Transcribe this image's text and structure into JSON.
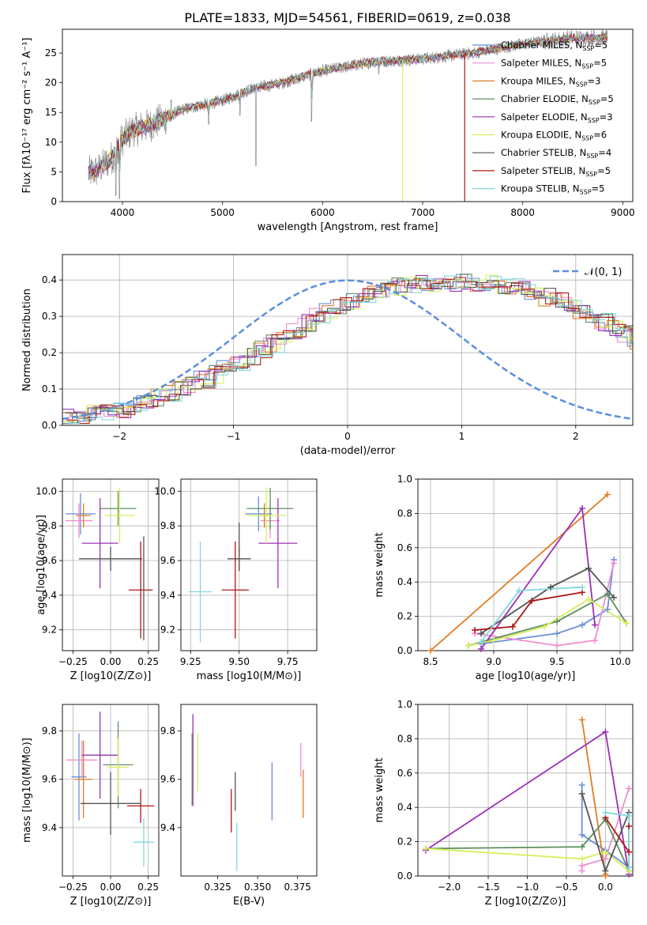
{
  "figure_title": "PLATE=1833, MJD=54561, FIBERID=0619, z=0.038",
  "colors": {
    "Chabrier MILES": "#6a8fd8",
    "Salpeter MILES": "#ee8ecd",
    "Kroupa MILES": "#e07c24",
    "Chabrier ELODIE": "#5f8f5f",
    "Salpeter ELODIE": "#9b30b5",
    "Kroupa ELODIE": "#d7ef5a",
    "Chabrier STELIB": "#555555",
    "Salpeter STELIB": "#b01515",
    "Kroupa STELIB": "#82d8dc",
    "data": "#808080",
    "normal_curve": "#5b8ee0"
  },
  "chart_data": [
    {
      "id": "spectrum",
      "type": "line",
      "title": "PLATE=1833, MJD=54561, FIBERID=0619, z=0.038",
      "xlabel": "wavelength [Angstrom, rest frame]",
      "ylabel": "Flux [fλ10⁻¹⁷ erg cm⁻² s⁻¹ A⁻¹]",
      "xlim": [
        3400,
        9100
      ],
      "ylim": [
        0,
        29
      ],
      "xticks": [
        4000,
        5000,
        6000,
        7000,
        8000,
        9000
      ],
      "yticks": [
        0,
        5,
        10,
        15,
        20,
        25
      ],
      "grid": false,
      "legend_position": "upper-right",
      "continuum": [
        [
          3660,
          4.8
        ],
        [
          3750,
          5.2
        ],
        [
          3900,
          7.5
        ],
        [
          4000,
          10.5
        ],
        [
          4100,
          12.0
        ],
        [
          4300,
          13.0
        ],
        [
          4600,
          15.5
        ],
        [
          5000,
          17.0
        ],
        [
          5300,
          19.0
        ],
        [
          5600,
          20.0
        ],
        [
          6000,
          22.0
        ],
        [
          6500,
          23.5
        ],
        [
          7000,
          24.0
        ],
        [
          7500,
          25.0
        ],
        [
          8000,
          26.5
        ],
        [
          8500,
          27.5
        ],
        [
          8850,
          27.6
        ]
      ],
      "absorption_lines": [
        [
          3934,
          1.0
        ],
        [
          3969,
          0.5
        ],
        [
          4861,
          13.0
        ],
        [
          5175,
          14.5
        ],
        [
          5270,
          18.0
        ],
        [
          5335,
          6.0
        ],
        [
          5891,
          13.5
        ],
        [
          6563,
          21.5
        ]
      ],
      "drop_lines": [
        {
          "series": "Kroupa ELODIE",
          "x": 6800
        },
        {
          "series": "Salpeter STELIB",
          "x": 7420
        }
      ],
      "legend": [
        {
          "label": "Chabrier MILES, N_SSP=5",
          "prefix": "Chabrier MILES, N",
          "sub": "SSP",
          "suffix": "=5"
        },
        {
          "label": "Salpeter MILES, N_SSP=5",
          "prefix": "Salpeter MILES, N",
          "sub": "SSP",
          "suffix": "=5"
        },
        {
          "label": "Kroupa MILES, N_SSP=3",
          "prefix": "Kroupa MILES, N",
          "sub": "SSP",
          "suffix": "=3"
        },
        {
          "label": "Chabrier ELODIE, N_SSP=5",
          "prefix": "Chabrier ELODIE, N",
          "sub": "SSP",
          "suffix": "=5"
        },
        {
          "label": "Salpeter ELODIE, N_SSP=3",
          "prefix": "Salpeter ELODIE, N",
          "sub": "SSP",
          "suffix": "=3"
        },
        {
          "label": "Kroupa ELODIE, N_SSP=6",
          "prefix": "Kroupa ELODIE, N",
          "sub": "SSP",
          "suffix": "=6"
        },
        {
          "label": "Chabrier STELIB, N_SSP=4",
          "prefix": "Chabrier STELIB, N",
          "sub": "SSP",
          "suffix": "=4"
        },
        {
          "label": "Salpeter STELIB, N_SSP=5",
          "prefix": "Salpeter STELIB, N",
          "sub": "SSP",
          "suffix": "=5"
        },
        {
          "label": "Kroupa STELIB, N_SSP=5",
          "prefix": "Kroupa STELIB, N",
          "sub": "SSP",
          "suffix": "=5"
        }
      ]
    },
    {
      "id": "residuals",
      "type": "line",
      "xlabel": "(data-model)/error",
      "ylabel": "Normed distribution",
      "xlim": [
        -2.5,
        2.5
      ],
      "ylim": [
        0,
        0.47
      ],
      "xticks": [
        -2,
        -1,
        0,
        1,
        2
      ],
      "yticks": [
        0.0,
        0.1,
        0.2,
        0.3,
        0.4
      ],
      "grid": true,
      "legend_position": "upper-right",
      "legend_label": "𝒩(0, 1)",
      "bin_width": 0.1,
      "hist_base": [
        0.022,
        0.026,
        0.03,
        0.035,
        0.04,
        0.046,
        0.055,
        0.064,
        0.075,
        0.086,
        0.098,
        0.112,
        0.126,
        0.14,
        0.157,
        0.174,
        0.19,
        0.208,
        0.225,
        0.243,
        0.262,
        0.28,
        0.3,
        0.316,
        0.33,
        0.343,
        0.355,
        0.365,
        0.375,
        0.383,
        0.388,
        0.392,
        0.393,
        0.395,
        0.394,
        0.396,
        0.393,
        0.39,
        0.385,
        0.38,
        0.372,
        0.362,
        0.353,
        0.345,
        0.333,
        0.318,
        0.302,
        0.285,
        0.268,
        0.25,
        0.232,
        0.214,
        0.197,
        0.18,
        0.163,
        0.147,
        0.132,
        0.118,
        0.105,
        0.093,
        0.082,
        0.072,
        0.063,
        0.055,
        0.048,
        0.042,
        0.036,
        0.031,
        0.027,
        0.024
      ],
      "curve": "standard normal"
    },
    {
      "id": "age-vs-Z",
      "type": "scatter",
      "xlabel": "Z [log10(Z/Z⊙)]",
      "ylabel": "age [log10(age/yr)]",
      "xlim": [
        -0.32,
        0.32
      ],
      "ylim": [
        9.08,
        10.07
      ],
      "xticks": [
        -0.25,
        0.0,
        0.25
      ],
      "yticks": [
        9.2,
        9.4,
        9.6,
        9.8,
        10.0
      ],
      "grid": true,
      "points": [
        {
          "series": "Chabrier MILES",
          "x": -0.2,
          "y": 9.87,
          "xerr": 0.1,
          "yerr": 0.12
        },
        {
          "series": "Salpeter MILES",
          "x": -0.21,
          "y": 9.83,
          "xerr": 0.09,
          "yerr": 0.1
        },
        {
          "series": "Kroupa MILES",
          "x": -0.18,
          "y": 9.86,
          "xerr": 0.05,
          "yerr": 0.07
        },
        {
          "series": "Chabrier ELODIE",
          "x": 0.05,
          "y": 9.9,
          "xerr": 0.12,
          "yerr": 0.1
        },
        {
          "series": "Salpeter ELODIE",
          "x": -0.07,
          "y": 9.7,
          "xerr": 0.12,
          "yerr": 0.26
        },
        {
          "series": "Kroupa ELODIE",
          "x": 0.06,
          "y": 9.86,
          "xerr": 0.1,
          "yerr": 0.16
        },
        {
          "series": "Chabrier STELIB",
          "x": 0.0,
          "y": 9.61,
          "xerr": 0.21,
          "yerr": 0.07
        },
        {
          "series": "Salpeter STELIB",
          "x": 0.2,
          "y": 9.43,
          "xerr": 0.08,
          "yerr": 0.28
        },
        {
          "series": "Chabrier STELIB",
          "x": 0.22,
          "y": 9.44,
          "xerr": 0.0,
          "yerr": 0.3
        }
      ]
    },
    {
      "id": "age-vs-mass",
      "type": "scatter",
      "xlabel": "mass [log10(M/M⊙)]",
      "xlim": [
        9.2,
        9.9
      ],
      "ylim": [
        9.08,
        10.07
      ],
      "xticks": [
        9.25,
        9.5,
        9.75
      ],
      "yticks": [
        9.2,
        9.4,
        9.6,
        9.8,
        10.0
      ],
      "grid": true,
      "points": [
        {
          "series": "Chabrier MILES",
          "x": 9.6,
          "y": 9.87,
          "xerr": 0.07,
          "yerr": 0.1
        },
        {
          "series": "Salpeter MILES",
          "x": 9.66,
          "y": 9.83,
          "xerr": 0.05,
          "yerr": 0.1
        },
        {
          "series": "Kroupa MILES",
          "x": 9.63,
          "y": 9.86,
          "xerr": 0.03,
          "yerr": 0.07
        },
        {
          "series": "Chabrier ELODIE",
          "x": 9.66,
          "y": 9.9,
          "xerr": 0.12,
          "yerr": 0.12
        },
        {
          "series": "Salpeter ELODIE",
          "x": 9.7,
          "y": 9.7,
          "xerr": 0.1,
          "yerr": 0.26
        },
        {
          "series": "Kroupa ELODIE",
          "x": 9.64,
          "y": 9.86,
          "xerr": 0.1,
          "yerr": 0.16
        },
        {
          "series": "Chabrier STELIB",
          "x": 9.5,
          "y": 9.61,
          "xerr": 0.06,
          "yerr": 0.07
        },
        {
          "series": "Salpeter STELIB",
          "x": 9.48,
          "y": 9.43,
          "xerr": 0.07,
          "yerr": 0.28
        },
        {
          "series": "Kroupa STELIB",
          "x": 9.3,
          "y": 9.42,
          "xerr": 0.06,
          "yerr": 0.29
        },
        {
          "series": "Chabrier STELIB",
          "x": 9.5,
          "y": 9.68,
          "xerr": 0.0,
          "yerr": 0.14
        }
      ]
    },
    {
      "id": "mass-weight-vs-age",
      "type": "line",
      "xlabel": "age [log10(age/yr)]",
      "ylabel": "mass weight",
      "xlim": [
        8.4,
        10.1
      ],
      "ylim": [
        0,
        1.0
      ],
      "xticks": [
        8.5,
        9.0,
        9.5,
        10.0
      ],
      "yticks": [
        0.0,
        0.2,
        0.4,
        0.6,
        0.8,
        1.0
      ],
      "grid": true,
      "series": [
        {
          "name": "Chabrier MILES",
          "x": [
            8.9,
            9.5,
            9.7,
            9.9,
            9.95
          ],
          "y": [
            0.04,
            0.1,
            0.15,
            0.24,
            0.53
          ]
        },
        {
          "name": "Salpeter MILES",
          "x": [
            8.85,
            9.5,
            9.8,
            9.95
          ],
          "y": [
            0.1,
            0.03,
            0.06,
            0.51
          ]
        },
        {
          "name": "Kroupa MILES",
          "x": [
            8.5,
            9.9
          ],
          "y": [
            0.0,
            0.91
          ]
        },
        {
          "name": "Chabrier ELODIE",
          "x": [
            8.8,
            9.5,
            9.9,
            10.05
          ],
          "y": [
            0.03,
            0.17,
            0.33,
            0.16
          ]
        },
        {
          "name": "Salpeter ELODIE",
          "x": [
            8.9,
            9.7,
            9.8
          ],
          "y": [
            0.01,
            0.83,
            0.15
          ]
        },
        {
          "name": "Kroupa ELODIE",
          "x": [
            8.8,
            9.0,
            9.4,
            9.75,
            10.05
          ],
          "y": [
            0.03,
            0.06,
            0.14,
            0.3,
            0.16
          ]
        },
        {
          "name": "Chabrier STELIB",
          "x": [
            8.9,
            9.45,
            9.75,
            9.95
          ],
          "y": [
            0.1,
            0.37,
            0.48,
            0.31
          ]
        },
        {
          "name": "Salpeter STELIB",
          "x": [
            8.85,
            9.15,
            9.3,
            9.7
          ],
          "y": [
            0.12,
            0.14,
            0.29,
            0.34
          ]
        },
        {
          "name": "Kroupa STELIB",
          "x": [
            8.9,
            9.2,
            9.7
          ],
          "y": [
            0.05,
            0.35,
            0.37
          ]
        }
      ]
    },
    {
      "id": "mass-vs-Z",
      "type": "scatter",
      "xlabel": "Z [log10(Z/Z⊙)]",
      "ylabel": "mass [log10(M/M⊙)]",
      "xlim": [
        -0.32,
        0.32
      ],
      "ylim": [
        9.2,
        9.91
      ],
      "xticks": [
        -0.25,
        0.0,
        0.25
      ],
      "yticks": [
        9.4,
        9.6,
        9.8
      ],
      "grid": true,
      "points": [
        {
          "series": "Chabrier MILES",
          "x": -0.21,
          "y": 9.61,
          "xerr": 0.05,
          "yerr": 0.18
        },
        {
          "series": "Salpeter MILES",
          "x": -0.19,
          "y": 9.68,
          "xerr": 0.1,
          "yerr": 0.08
        },
        {
          "series": "Kroupa MILES",
          "x": -0.18,
          "y": 9.6,
          "xerr": 0.06,
          "yerr": 0.16
        },
        {
          "series": "Chabrier ELODIE",
          "x": 0.05,
          "y": 9.66,
          "xerr": 0.1,
          "yerr": 0.18
        },
        {
          "series": "Salpeter ELODIE",
          "x": -0.07,
          "y": 9.7,
          "xerr": 0.12,
          "yerr": 0.18
        },
        {
          "series": "Kroupa ELODIE",
          "x": 0.05,
          "y": 9.65,
          "xerr": 0.07,
          "yerr": 0.12
        },
        {
          "series": "Chabrier STELIB",
          "x": 0.0,
          "y": 9.5,
          "xerr": 0.2,
          "yerr": 0.13
        },
        {
          "series": "Salpeter STELIB",
          "x": 0.2,
          "y": 9.49,
          "xerr": 0.09,
          "yerr": 0.07
        },
        {
          "series": "Kroupa STELIB",
          "x": 0.22,
          "y": 9.34,
          "xerr": 0.07,
          "yerr": 0.1
        }
      ]
    },
    {
      "id": "mass-vs-EBV",
      "type": "scatter",
      "xlabel": "E(B-V)",
      "xlim": [
        0.302,
        0.387
      ],
      "ylim": [
        9.2,
        9.91
      ],
      "xticks": [
        0.325,
        0.35,
        0.375
      ],
      "xtick_labels": [
        "0.325",
        "0.350",
        "0.375"
      ],
      "yticks": [
        9.4,
        9.6,
        9.8
      ],
      "grid": false,
      "points": [
        {
          "series": "Salpeter ELODIE",
          "x": 0.3095,
          "y": 9.68,
          "yerr": 0.19
        },
        {
          "series": "Chabrier ELODIE",
          "x": 0.309,
          "y": 9.64,
          "yerr": 0.15
        },
        {
          "series": "Kroupa ELODIE",
          "x": 0.3125,
          "y": 9.67,
          "yerr": 0.12
        },
        {
          "series": "Salpeter STELIB",
          "x": 0.3335,
          "y": 9.47,
          "yerr": 0.09
        },
        {
          "series": "Chabrier STELIB",
          "x": 0.336,
          "y": 9.55,
          "yerr": 0.08
        },
        {
          "series": "Kroupa STELIB",
          "x": 0.337,
          "y": 9.32,
          "yerr": 0.1
        },
        {
          "series": "Chabrier MILES",
          "x": 0.359,
          "y": 9.55,
          "yerr": 0.12
        },
        {
          "series": "Salpeter MILES",
          "x": 0.377,
          "y": 9.68,
          "yerr": 0.07
        },
        {
          "series": "Kroupa MILES",
          "x": 0.3785,
          "y": 9.54,
          "yerr": 0.1
        }
      ]
    },
    {
      "id": "mass-weight-vs-Z",
      "type": "line",
      "xlabel": "Z [log10(Z/Z⊙)]",
      "ylabel": "mass weight",
      "xlim": [
        -2.4,
        0.35
      ],
      "ylim": [
        0,
        1.0
      ],
      "xticks": [
        -2.0,
        -1.5,
        -1.0,
        -0.5,
        0.0
      ],
      "yticks": [
        0.0,
        0.2,
        0.4,
        0.6,
        0.8,
        1.0
      ],
      "grid": true,
      "series": [
        {
          "name": "Chabrier MILES",
          "x": [
            -0.3,
            -0.3,
            0.0,
            0.3
          ],
          "y": [
            0.53,
            0.24,
            0.15,
            0.05
          ]
        },
        {
          "name": "Salpeter MILES",
          "x": [
            -0.3,
            -0.3,
            0.0,
            0.3
          ],
          "y": [
            0.03,
            0.06,
            0.1,
            0.51
          ]
        },
        {
          "name": "Kroupa MILES",
          "x": [
            -0.3,
            0.0,
            0.0
          ],
          "y": [
            0.91,
            0.01,
            0.0
          ]
        },
        {
          "name": "Chabrier ELODIE",
          "x": [
            -2.3,
            -0.3,
            0.0,
            0.3
          ],
          "y": [
            0.16,
            0.17,
            0.33,
            0.03
          ]
        },
        {
          "name": "Salpeter ELODIE",
          "x": [
            -2.3,
            0.0,
            0.3
          ],
          "y": [
            0.15,
            0.84,
            0.01
          ]
        },
        {
          "name": "Kroupa ELODIE",
          "x": [
            -2.3,
            -0.3,
            0.0,
            0.3
          ],
          "y": [
            0.16,
            0.1,
            0.14,
            0.03
          ]
        },
        {
          "name": "Chabrier STELIB",
          "x": [
            -0.3,
            0.0,
            0.3
          ],
          "y": [
            0.48,
            0.03,
            0.37
          ]
        },
        {
          "name": "Salpeter STELIB",
          "x": [
            0.0,
            0.3,
            0.3
          ],
          "y": [
            0.34,
            0.14,
            0.29
          ]
        },
        {
          "name": "Kroupa STELIB",
          "x": [
            0.0,
            0.3,
            0.3
          ],
          "y": [
            0.37,
            0.35,
            0.05
          ]
        }
      ]
    }
  ]
}
